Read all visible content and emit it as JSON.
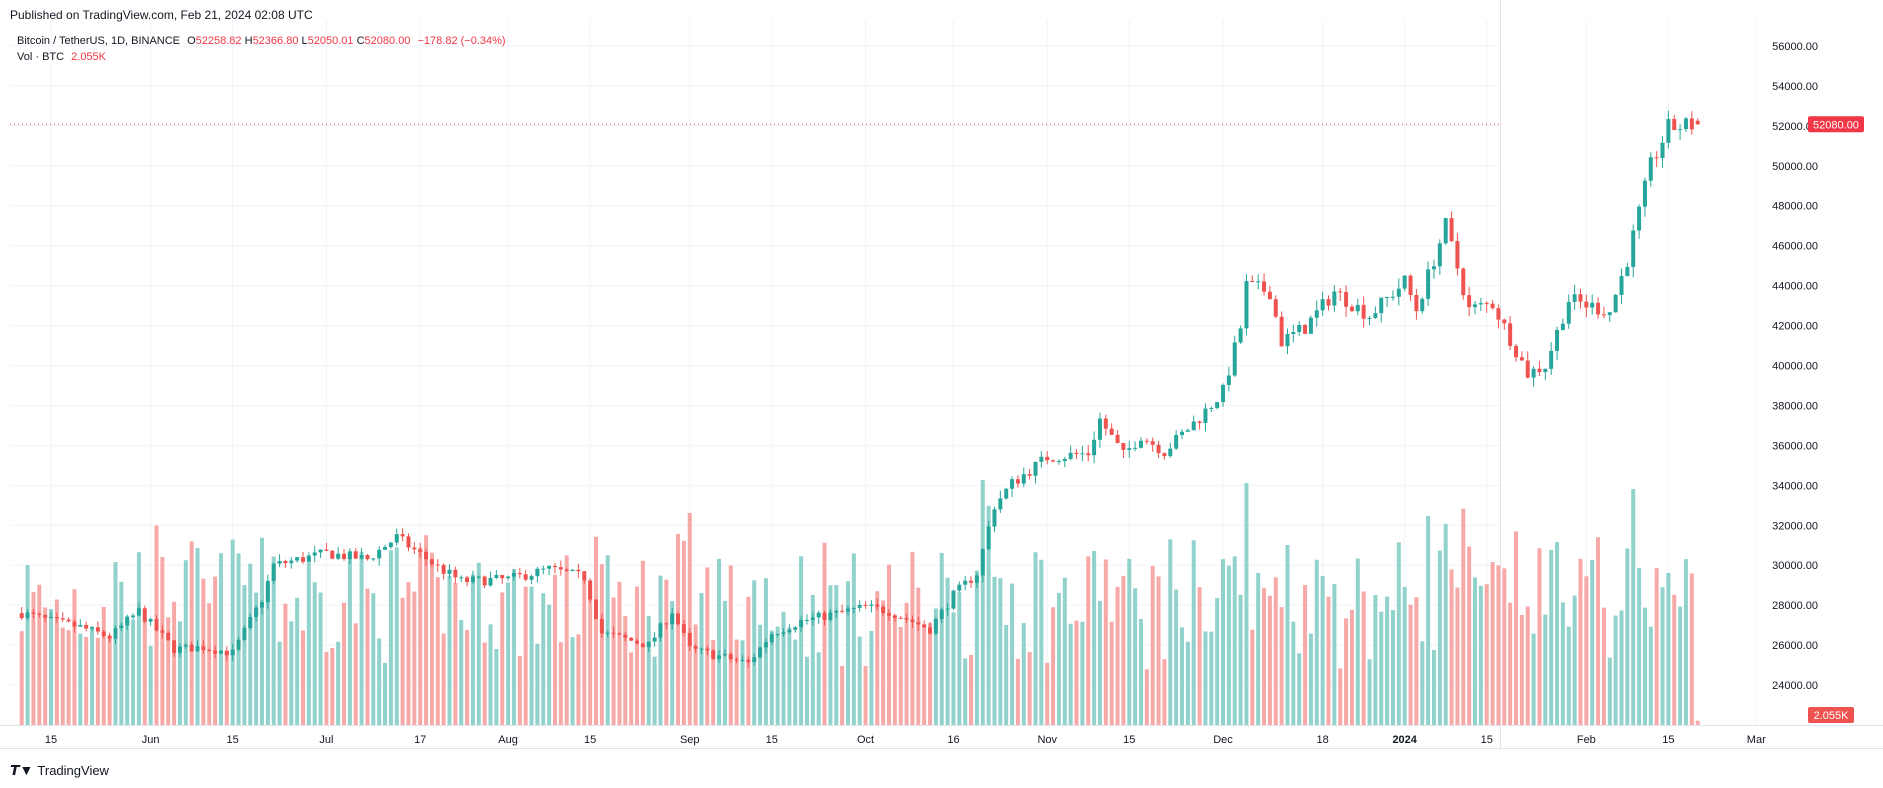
{
  "header": {
    "published": "Published on TradingView.com, Feb 21, 2024 02:08 UTC"
  },
  "legend": {
    "symbol": "Bitcoin / TetherUS, 1D, BINANCE",
    "open_label": "O",
    "open": "52258.82",
    "high_label": "H",
    "high": "52366.80",
    "low_label": "L",
    "low": "52050.01",
    "close_label": "C",
    "close": "52080.00",
    "change": "−178.82 (−0.34%)",
    "vol_label": "Vol · BTC",
    "vol_value": "2.055K"
  },
  "badges": {
    "last_price": "52080.00",
    "last_volume": "2.055K"
  },
  "footer": {
    "brand": "TradingView"
  },
  "colors": {
    "up": "#26a69a",
    "down": "#ef5350",
    "up_vol": "#92d2cc",
    "down_vol": "#f7a9a7",
    "accent": "#f23645",
    "grid": "#f0f3fa"
  },
  "chart_data": {
    "type": "candlestick",
    "title": "Bitcoin / TetherUS, 1D, BINANCE",
    "y_ticks": [
      "24000.00",
      "26000.00",
      "28000.00",
      "30000.00",
      "32000.00",
      "34000.00",
      "36000.00",
      "38000.00",
      "40000.00",
      "42000.00",
      "44000.00",
      "46000.00",
      "48000.00",
      "50000.00",
      "52000.00",
      "54000.00",
      "56000.00"
    ],
    "ylim": [
      22000,
      56800
    ],
    "x_ticks": [
      {
        "label": "15",
        "date": "2023-05-15"
      },
      {
        "label": "Jun",
        "date": "2023-06-01"
      },
      {
        "label": "15",
        "date": "2023-06-15"
      },
      {
        "label": "Jul",
        "date": "2023-07-01"
      },
      {
        "label": "17",
        "date": "2023-07-17"
      },
      {
        "label": "Aug",
        "date": "2023-08-01"
      },
      {
        "label": "15",
        "date": "2023-08-15"
      },
      {
        "label": "Sep",
        "date": "2023-09-01"
      },
      {
        "label": "15",
        "date": "2023-09-15"
      },
      {
        "label": "Oct",
        "date": "2023-10-01"
      },
      {
        "label": "16",
        "date": "2023-10-16"
      },
      {
        "label": "Nov",
        "date": "2023-11-01"
      },
      {
        "label": "15",
        "date": "2023-11-15"
      },
      {
        "label": "Dec",
        "date": "2023-12-01"
      },
      {
        "label": "18",
        "date": "2023-12-18"
      },
      {
        "label": "2024",
        "date": "2024-01-01",
        "bold": true
      },
      {
        "label": "15",
        "date": "2024-01-15"
      },
      {
        "label": "Feb",
        "date": "2024-02-01"
      },
      {
        "label": "15",
        "date": "2024-02-15"
      },
      {
        "label": "Mar",
        "date": "2024-03-01"
      }
    ],
    "price_line": 52080,
    "closes": [
      {
        "date": "2023-05-10",
        "close": 27600
      },
      {
        "date": "2023-05-15",
        "close": 27200
      },
      {
        "date": "2023-05-20",
        "close": 26900
      },
      {
        "date": "2023-05-25",
        "close": 26400
      },
      {
        "date": "2023-05-30",
        "close": 27700
      },
      {
        "date": "2023-06-05",
        "close": 25800
      },
      {
        "date": "2023-06-10",
        "close": 25900
      },
      {
        "date": "2023-06-15",
        "close": 25600
      },
      {
        "date": "2023-06-20",
        "close": 28300
      },
      {
        "date": "2023-06-22",
        "close": 30000
      },
      {
        "date": "2023-07-01",
        "close": 30600
      },
      {
        "date": "2023-07-08",
        "close": 30300
      },
      {
        "date": "2023-07-13",
        "close": 31400
      },
      {
        "date": "2023-07-20",
        "close": 29900
      },
      {
        "date": "2023-07-24",
        "close": 29200
      },
      {
        "date": "2023-08-01",
        "close": 29300
      },
      {
        "date": "2023-08-08",
        "close": 29800
      },
      {
        "date": "2023-08-14",
        "close": 29400
      },
      {
        "date": "2023-08-17",
        "close": 26600
      },
      {
        "date": "2023-08-25",
        "close": 26000
      },
      {
        "date": "2023-08-29",
        "close": 27700
      },
      {
        "date": "2023-09-01",
        "close": 25800
      },
      {
        "date": "2023-09-11",
        "close": 25100
      },
      {
        "date": "2023-09-15",
        "close": 26600
      },
      {
        "date": "2023-09-20",
        "close": 27200
      },
      {
        "date": "2023-10-01",
        "close": 27900
      },
      {
        "date": "2023-10-05",
        "close": 27700
      },
      {
        "date": "2023-10-12",
        "close": 26800
      },
      {
        "date": "2023-10-16",
        "close": 28500
      },
      {
        "date": "2023-10-20",
        "close": 29600
      },
      {
        "date": "2023-10-23",
        "close": 33000
      },
      {
        "date": "2023-10-26",
        "close": 34100
      },
      {
        "date": "2023-11-01",
        "close": 35400
      },
      {
        "date": "2023-11-08",
        "close": 35600
      },
      {
        "date": "2023-11-10",
        "close": 37300
      },
      {
        "date": "2023-11-14",
        "close": 35500
      },
      {
        "date": "2023-11-17",
        "close": 36500
      },
      {
        "date": "2023-11-21",
        "close": 35700
      },
      {
        "date": "2023-11-27",
        "close": 37400
      },
      {
        "date": "2023-12-01",
        "close": 38700
      },
      {
        "date": "2023-12-04",
        "close": 41900
      },
      {
        "date": "2023-12-05",
        "close": 44000
      },
      {
        "date": "2023-12-09",
        "close": 43700
      },
      {
        "date": "2023-12-11",
        "close": 41200
      },
      {
        "date": "2023-12-15",
        "close": 41900
      },
      {
        "date": "2023-12-20",
        "close": 43700
      },
      {
        "date": "2023-12-26",
        "close": 42500
      },
      {
        "date": "2024-01-01",
        "close": 44200
      },
      {
        "date": "2024-01-03",
        "close": 42800
      },
      {
        "date": "2024-01-08",
        "close": 47000
      },
      {
        "date": "2024-01-12",
        "close": 42800
      },
      {
        "date": "2024-01-16",
        "close": 43100
      },
      {
        "date": "2024-01-22",
        "close": 39600
      },
      {
        "date": "2024-01-25",
        "close": 40000
      },
      {
        "date": "2024-01-29",
        "close": 43300
      },
      {
        "date": "2024-02-05",
        "close": 42700
      },
      {
        "date": "2024-02-08",
        "close": 45300
      },
      {
        "date": "2024-02-12",
        "close": 50000
      },
      {
        "date": "2024-02-15",
        "close": 51900
      },
      {
        "date": "2024-02-20",
        "close": 52080
      }
    ]
  }
}
